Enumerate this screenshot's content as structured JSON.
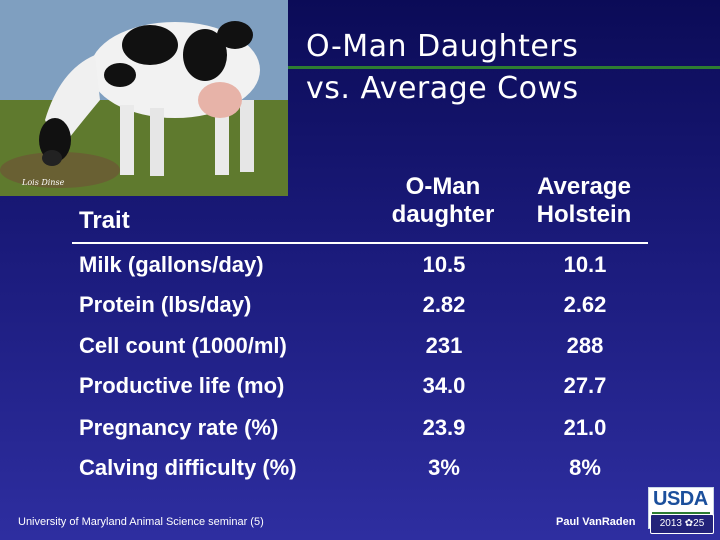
{
  "photo": {
    "credit": "Lois Dinse"
  },
  "title": {
    "line1": "O-Man Daughters",
    "line2": "vs. Average Cows"
  },
  "table": {
    "headers": {
      "trait": "Trait",
      "oman_line1": "O-Man",
      "oman_line2": "daughter",
      "avg_line1": "Average",
      "avg_line2": "Holstein"
    },
    "rows": [
      {
        "trait": "Milk (gallons/day)",
        "oman": "10.5",
        "avg": "10.1"
      },
      {
        "trait": "Protein (lbs/day)",
        "oman": "2.82",
        "avg": "2.62"
      },
      {
        "trait": "Cell count (1000/ml)",
        "oman": "231",
        "avg": "288"
      },
      {
        "trait": "Productive life (mo)",
        "oman": "34.0",
        "avg": "27.7"
      },
      {
        "trait": "Pregnancy rate (%)",
        "oman": "23.9",
        "avg": "21.0"
      },
      {
        "trait": "Calving difficulty (%)",
        "oman": "3%",
        "avg": "8%"
      }
    ]
  },
  "footer": {
    "left": "University of Maryland Animal Science seminar (5)",
    "right": "Paul VanRaden",
    "logo": "USDA",
    "badge": "2013 ✿25"
  }
}
